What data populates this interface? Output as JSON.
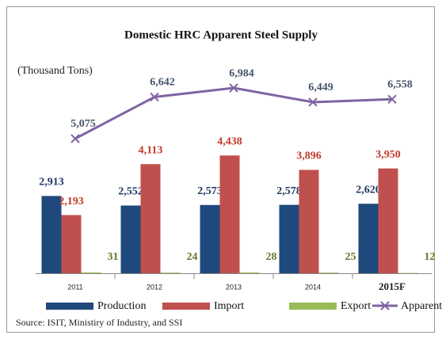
{
  "chart_data": {
    "type": "bar",
    "title": "Domestic HRC Apparent Steel Supply",
    "subtitle": "(Thousand Tons)",
    "source": "Source: ISIT, Ministiry of Industry, and SSI",
    "categories": [
      "2011",
      "2012",
      "2013",
      "2014",
      "2015F"
    ],
    "series": [
      {
        "name": "Production",
        "type": "bar",
        "color": "#1f497d",
        "label_color": "#1f3864",
        "values": [
          2913,
          2552,
          2573,
          2578,
          2620
        ],
        "value_labels": [
          "2,913",
          "2,552",
          "2,573",
          "2,578",
          "2,620"
        ]
      },
      {
        "name": "Import",
        "type": "bar",
        "color": "#c0504d",
        "label_color": "#c0392b",
        "values": [
          2193,
          4113,
          4438,
          3896,
          3950
        ],
        "value_labels": [
          "2,193",
          "4,113",
          "4,438",
          "3,896",
          "3,950"
        ]
      },
      {
        "name": "Export",
        "type": "bar",
        "color": "#9bbb59",
        "label_color": "#5f7a2a",
        "values": [
          31,
          24,
          28,
          25,
          12
        ]
      },
      {
        "name": "Apparent",
        "type": "line",
        "color": "#8064a2",
        "label_color": "#44546a",
        "values": [
          5075,
          6642,
          6984,
          6449,
          6558
        ],
        "value_labels": [
          "5,075",
          "6,642",
          "6,984",
          "6,449",
          "6,558"
        ]
      }
    ]
  }
}
